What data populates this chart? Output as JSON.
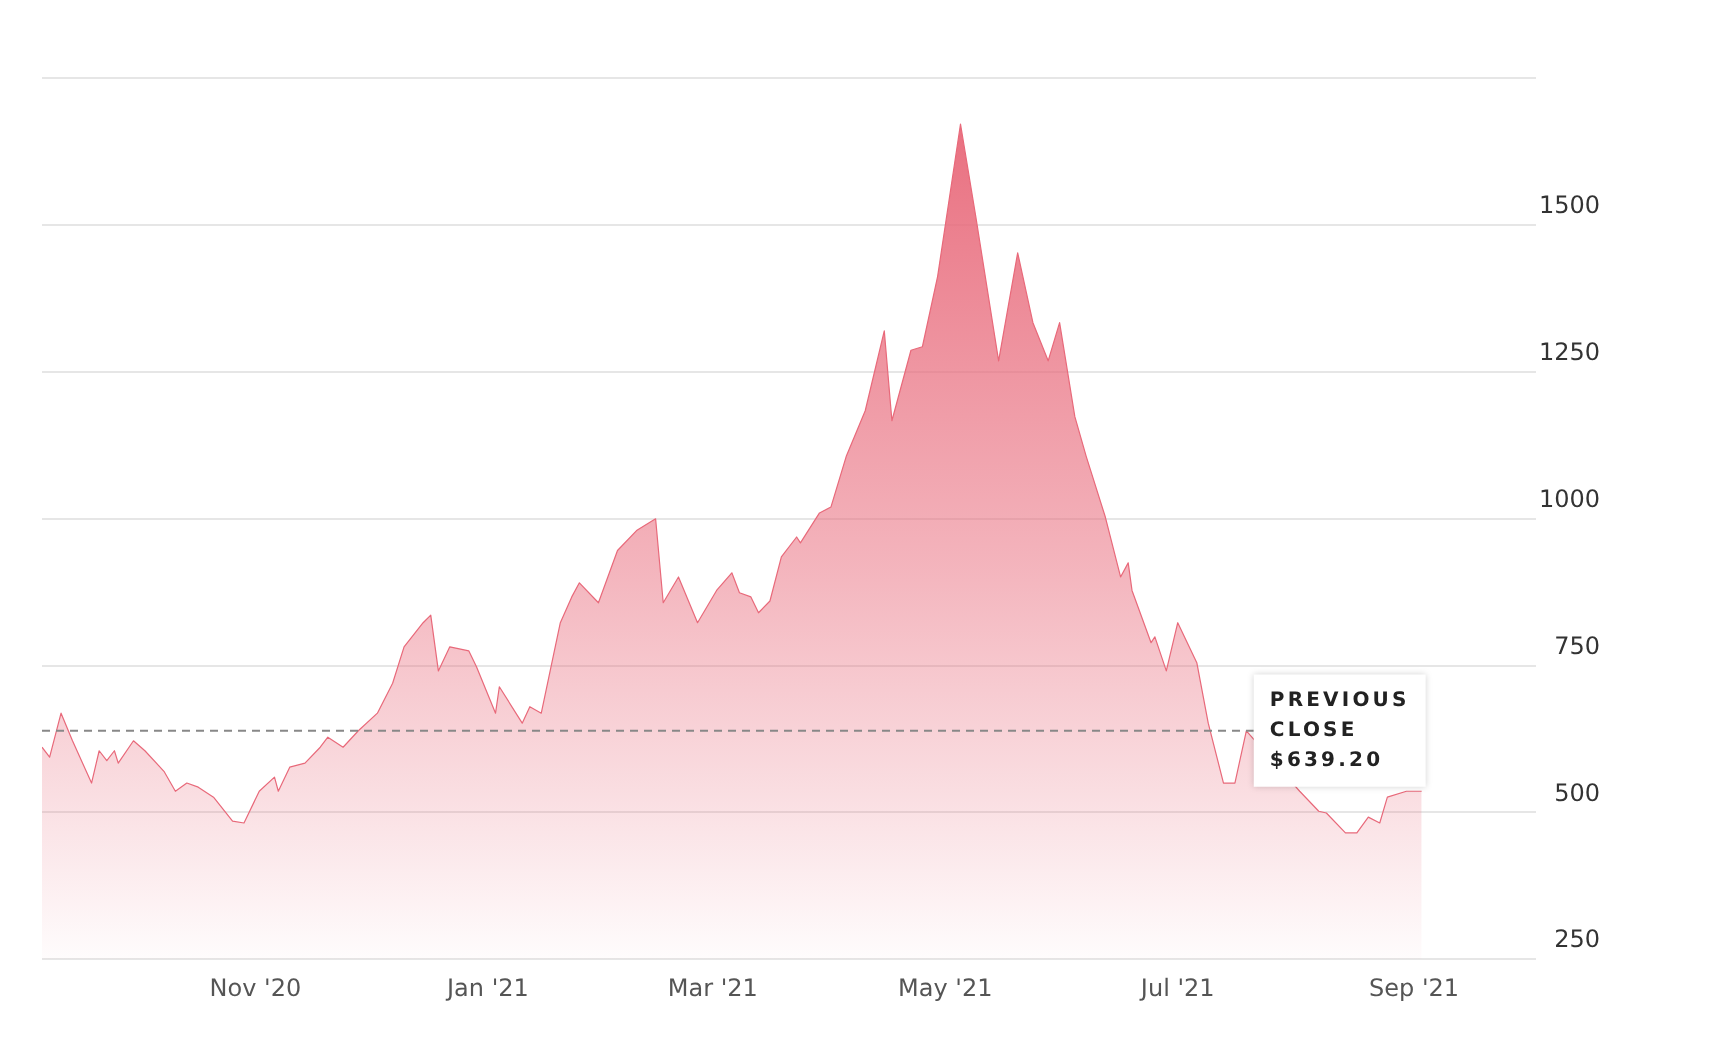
{
  "chart_data": {
    "type": "area",
    "x": [
      "2020-09-06",
      "2020-09-08",
      "2020-09-11",
      "2020-09-14",
      "2020-09-19",
      "2020-09-21",
      "2020-09-23",
      "2020-09-25",
      "2020-09-26",
      "2020-09-30",
      "2020-10-03",
      "2020-10-08",
      "2020-10-11",
      "2020-10-14",
      "2020-10-17",
      "2020-10-21",
      "2020-10-26",
      "2020-10-29",
      "2020-11-02",
      "2020-11-06",
      "2020-11-07",
      "2020-11-10",
      "2020-11-14",
      "2020-11-18",
      "2020-11-20",
      "2020-11-24",
      "2020-11-28",
      "2020-12-03",
      "2020-12-07",
      "2020-12-10",
      "2020-12-15",
      "2020-12-17",
      "2020-12-19",
      "2020-12-22",
      "2020-12-27",
      "2020-12-29",
      "2021-01-03",
      "2021-01-04",
      "2021-01-10",
      "2021-01-12",
      "2021-01-15",
      "2021-01-17",
      "2021-01-20",
      "2021-01-23",
      "2021-01-25",
      "2021-01-30",
      "2021-02-04",
      "2021-02-09",
      "2021-02-14",
      "2021-02-16",
      "2021-02-20",
      "2021-02-25",
      "2021-03-02",
      "2021-03-06",
      "2021-03-08",
      "2021-03-11",
      "2021-03-13",
      "2021-03-16",
      "2021-03-19",
      "2021-03-23",
      "2021-03-24",
      "2021-03-29",
      "2021-04-01",
      "2021-04-05",
      "2021-04-10",
      "2021-04-15",
      "2021-04-17",
      "2021-04-22",
      "2021-04-25",
      "2021-04-29",
      "2021-05-05",
      "2021-05-09",
      "2021-05-15",
      "2021-05-20",
      "2021-05-24",
      "2021-05-28",
      "2021-05-31",
      "2021-06-04",
      "2021-06-07",
      "2021-06-12",
      "2021-06-16",
      "2021-06-18",
      "2021-06-19",
      "2021-06-24",
      "2021-06-25",
      "2021-06-28",
      "2021-07-01",
      "2021-07-06",
      "2021-07-09",
      "2021-07-13",
      "2021-07-16",
      "2021-07-19",
      "2021-08-02",
      "2021-08-07",
      "2021-08-09",
      "2021-08-14",
      "2021-08-17",
      "2021-08-20",
      "2021-08-23",
      "2021-08-25",
      "2021-08-30",
      "2021-09-03"
    ],
    "series": [
      {
        "color": "#e8697a",
        "values": [
          611,
          594,
          669,
          622,
          550,
          605,
          588,
          605,
          584,
          622,
          605,
          570,
          536,
          550,
          543,
          526,
          485,
          482,
          536,
          560,
          536,
          577,
          584,
          611,
          628,
          611,
          639,
          669,
          720,
          782,
          823,
          836,
          741,
          782,
          775,
          748,
          669,
          714,
          652,
          680,
          669,
          731,
          823,
          867,
          891,
          857,
          946,
          980,
          1000,
          857,
          901,
          823,
          878,
          908,
          874,
          867,
          840,
          860,
          935,
          969,
          959,
          1010,
          1020,
          1106,
          1184,
          1320,
          1167,
          1287,
          1293,
          1413,
          1672,
          1515,
          1269,
          1453,
          1334,
          1269,
          1334,
          1174,
          1106,
          1003,
          901,
          925,
          878,
          789,
          799,
          741,
          823,
          755,
          652,
          550,
          550,
          639,
          536,
          502,
          499,
          465,
          465,
          492,
          482,
          526,
          536,
          536
        ]
      }
    ],
    "xlim": [
      "2020-09-06",
      "2021-10-03"
    ],
    "xticks": [
      {
        "value": "2020-11-01",
        "label": "Nov '20"
      },
      {
        "value": "2021-01-01",
        "label": "Jan '21"
      },
      {
        "value": "2021-03-01",
        "label": "Mar '21"
      },
      {
        "value": "2021-05-01",
        "label": "May '21"
      },
      {
        "value": "2021-07-01",
        "label": "Jul '21"
      },
      {
        "value": "2021-09-01",
        "label": "Sep '21"
      }
    ],
    "ylim": [
      250,
      1750
    ],
    "yticks": [
      250,
      500,
      750,
      1000,
      1250,
      1500,
      {
        "value": 1750,
        "label": null
      }
    ],
    "grid": "y",
    "legend": false,
    "marker": "none",
    "ref_lines": [
      {
        "axis": "y",
        "value": 639.2,
        "label": "PREVIOUS CLOSE $639.20",
        "color": "#888888",
        "line_style": "dashed"
      }
    ]
  }
}
